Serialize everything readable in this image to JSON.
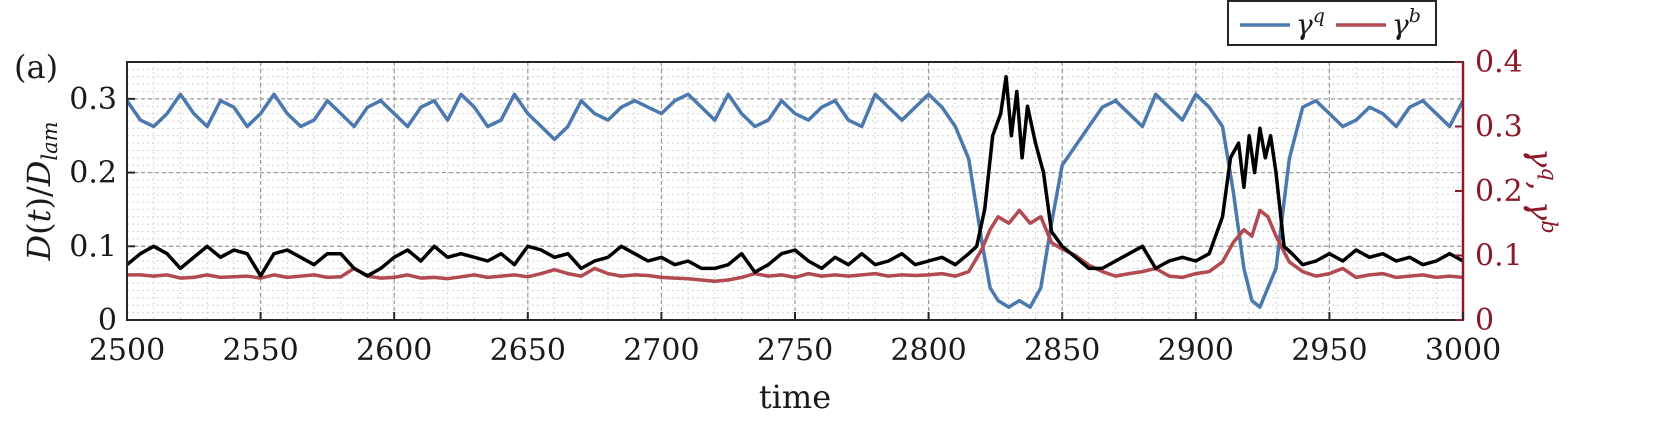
{
  "chart_data": {
    "type": "line",
    "panel_label": "(a)",
    "xlabel": "time",
    "ylabel_left": "D(t)/D_lam",
    "ylabel_right": "γ^q, γ^b",
    "xlim": [
      2500,
      3000
    ],
    "ylim_left": [
      0,
      0.35
    ],
    "ylim_right": [
      0,
      0.4
    ],
    "x_ticks": [
      2500,
      2550,
      2600,
      2650,
      2700,
      2750,
      2800,
      2850,
      2900,
      2950,
      3000
    ],
    "y_ticks_left": [
      0,
      0.1,
      0.2,
      0.3
    ],
    "y_ticks_right": [
      0,
      0.1,
      0.2,
      0.3,
      0.4
    ],
    "grid": true,
    "legend_position": "top-right",
    "colors": {
      "gamma_q": "#4b79ad",
      "gamma_b": "#b24a52",
      "D": "#000000",
      "right_axis": "#8b1a2b"
    },
    "legend": [
      {
        "label": "γ^q",
        "base": "γ",
        "sup": "q",
        "color": "#4b79ad"
      },
      {
        "label": "γ^b",
        "base": "γ",
        "sup": "b",
        "color": "#b24a52"
      }
    ],
    "series": [
      {
        "name": "γ^q",
        "axis": "right",
        "x": [
          2500,
          2505,
          2510,
          2515,
          2520,
          2525,
          2530,
          2535,
          2540,
          2545,
          2550,
          2555,
          2560,
          2565,
          2570,
          2575,
          2580,
          2585,
          2590,
          2595,
          2600,
          2605,
          2610,
          2615,
          2620,
          2625,
          2630,
          2635,
          2640,
          2645,
          2650,
          2655,
          2660,
          2665,
          2670,
          2675,
          2680,
          2685,
          2690,
          2695,
          2700,
          2705,
          2710,
          2715,
          2720,
          2725,
          2730,
          2735,
          2740,
          2745,
          2750,
          2755,
          2760,
          2765,
          2770,
          2775,
          2780,
          2785,
          2790,
          2795,
          2800,
          2805,
          2810,
          2815,
          2820,
          2823,
          2826,
          2830,
          2834,
          2838,
          2842,
          2846,
          2850,
          2855,
          2860,
          2865,
          2870,
          2875,
          2880,
          2885,
          2890,
          2895,
          2900,
          2905,
          2910,
          2914,
          2918,
          2921,
          2924,
          2927,
          2930,
          2935,
          2940,
          2945,
          2950,
          2955,
          2960,
          2965,
          2970,
          2975,
          2980,
          2985,
          2990,
          2995,
          3000
        ],
        "y": [
          0.34,
          0.31,
          0.3,
          0.32,
          0.35,
          0.32,
          0.3,
          0.34,
          0.33,
          0.3,
          0.32,
          0.35,
          0.32,
          0.3,
          0.31,
          0.34,
          0.32,
          0.3,
          0.33,
          0.34,
          0.32,
          0.3,
          0.33,
          0.34,
          0.31,
          0.35,
          0.33,
          0.3,
          0.31,
          0.35,
          0.32,
          0.3,
          0.28,
          0.3,
          0.34,
          0.32,
          0.31,
          0.33,
          0.34,
          0.33,
          0.32,
          0.34,
          0.35,
          0.33,
          0.31,
          0.35,
          0.32,
          0.3,
          0.31,
          0.34,
          0.32,
          0.31,
          0.33,
          0.34,
          0.31,
          0.3,
          0.35,
          0.33,
          0.31,
          0.33,
          0.35,
          0.33,
          0.3,
          0.25,
          0.12,
          0.05,
          0.03,
          0.02,
          0.03,
          0.02,
          0.05,
          0.15,
          0.24,
          0.27,
          0.3,
          0.33,
          0.34,
          0.32,
          0.3,
          0.35,
          0.33,
          0.31,
          0.35,
          0.33,
          0.3,
          0.2,
          0.08,
          0.03,
          0.02,
          0.05,
          0.08,
          0.25,
          0.33,
          0.34,
          0.32,
          0.3,
          0.31,
          0.33,
          0.32,
          0.3,
          0.33,
          0.34,
          0.32,
          0.3,
          0.34
        ]
      },
      {
        "name": "γ^b",
        "axis": "right",
        "x": [
          2500,
          2505,
          2510,
          2515,
          2520,
          2525,
          2530,
          2535,
          2540,
          2545,
          2550,
          2555,
          2560,
          2565,
          2570,
          2575,
          2580,
          2585,
          2590,
          2595,
          2600,
          2605,
          2610,
          2615,
          2620,
          2625,
          2630,
          2635,
          2640,
          2645,
          2650,
          2655,
          2660,
          2665,
          2670,
          2675,
          2680,
          2685,
          2690,
          2695,
          2700,
          2705,
          2710,
          2715,
          2720,
          2725,
          2730,
          2735,
          2740,
          2745,
          2750,
          2755,
          2760,
          2765,
          2770,
          2775,
          2780,
          2785,
          2790,
          2795,
          2800,
          2805,
          2810,
          2815,
          2820,
          2823,
          2826,
          2830,
          2834,
          2838,
          2842,
          2846,
          2850,
          2855,
          2860,
          2865,
          2870,
          2875,
          2880,
          2885,
          2890,
          2895,
          2900,
          2905,
          2910,
          2914,
          2918,
          2921,
          2924,
          2927,
          2930,
          2935,
          2940,
          2945,
          2950,
          2955,
          2960,
          2965,
          2970,
          2975,
          2980,
          2985,
          2990,
          2995,
          3000
        ],
        "y": [
          0.07,
          0.07,
          0.068,
          0.07,
          0.065,
          0.066,
          0.07,
          0.066,
          0.067,
          0.068,
          0.065,
          0.07,
          0.066,
          0.068,
          0.07,
          0.066,
          0.067,
          0.08,
          0.068,
          0.065,
          0.066,
          0.07,
          0.065,
          0.066,
          0.064,
          0.067,
          0.07,
          0.066,
          0.068,
          0.07,
          0.067,
          0.072,
          0.078,
          0.072,
          0.068,
          0.08,
          0.072,
          0.068,
          0.07,
          0.069,
          0.066,
          0.065,
          0.064,
          0.062,
          0.06,
          0.062,
          0.066,
          0.072,
          0.068,
          0.07,
          0.066,
          0.072,
          0.068,
          0.07,
          0.068,
          0.07,
          0.072,
          0.068,
          0.07,
          0.069,
          0.07,
          0.072,
          0.068,
          0.075,
          0.11,
          0.14,
          0.16,
          0.15,
          0.17,
          0.15,
          0.16,
          0.12,
          0.11,
          0.1,
          0.085,
          0.075,
          0.068,
          0.072,
          0.075,
          0.08,
          0.068,
          0.066,
          0.072,
          0.075,
          0.09,
          0.12,
          0.14,
          0.13,
          0.17,
          0.16,
          0.13,
          0.09,
          0.075,
          0.068,
          0.072,
          0.08,
          0.066,
          0.07,
          0.072,
          0.066,
          0.068,
          0.07,
          0.066,
          0.068,
          0.066
        ]
      },
      {
        "name": "D(t)/D_lam",
        "axis": "left",
        "x": [
          2500,
          2505,
          2510,
          2515,
          2520,
          2525,
          2530,
          2535,
          2540,
          2545,
          2550,
          2555,
          2560,
          2565,
          2570,
          2575,
          2580,
          2585,
          2590,
          2595,
          2600,
          2605,
          2610,
          2615,
          2620,
          2625,
          2630,
          2635,
          2640,
          2645,
          2650,
          2655,
          2660,
          2665,
          2670,
          2675,
          2680,
          2685,
          2690,
          2695,
          2700,
          2705,
          2710,
          2715,
          2720,
          2725,
          2730,
          2735,
          2740,
          2745,
          2750,
          2755,
          2760,
          2765,
          2770,
          2775,
          2780,
          2785,
          2790,
          2795,
          2800,
          2805,
          2810,
          2815,
          2818,
          2821,
          2824,
          2827,
          2829,
          2831,
          2833,
          2835,
          2837,
          2840,
          2843,
          2846,
          2850,
          2855,
          2860,
          2865,
          2870,
          2875,
          2880,
          2885,
          2890,
          2895,
          2900,
          2905,
          2910,
          2913,
          2916,
          2918,
          2920,
          2922,
          2924,
          2926,
          2928,
          2930,
          2933,
          2936,
          2940,
          2945,
          2950,
          2955,
          2960,
          2965,
          2970,
          2975,
          2980,
          2985,
          2990,
          2995,
          3000
        ],
        "y": [
          0.075,
          0.09,
          0.1,
          0.09,
          0.07,
          0.085,
          0.1,
          0.085,
          0.095,
          0.09,
          0.06,
          0.09,
          0.095,
          0.085,
          0.075,
          0.09,
          0.09,
          0.07,
          0.06,
          0.07,
          0.085,
          0.095,
          0.08,
          0.1,
          0.085,
          0.09,
          0.085,
          0.08,
          0.09,
          0.075,
          0.1,
          0.095,
          0.085,
          0.09,
          0.07,
          0.08,
          0.085,
          0.1,
          0.09,
          0.08,
          0.085,
          0.075,
          0.08,
          0.07,
          0.07,
          0.075,
          0.09,
          0.065,
          0.075,
          0.09,
          0.095,
          0.08,
          0.07,
          0.085,
          0.075,
          0.09,
          0.075,
          0.08,
          0.09,
          0.075,
          0.08,
          0.085,
          0.075,
          0.09,
          0.1,
          0.15,
          0.25,
          0.28,
          0.33,
          0.25,
          0.31,
          0.22,
          0.29,
          0.24,
          0.2,
          0.12,
          0.1,
          0.085,
          0.07,
          0.07,
          0.08,
          0.09,
          0.1,
          0.07,
          0.08,
          0.085,
          0.08,
          0.09,
          0.14,
          0.22,
          0.24,
          0.18,
          0.25,
          0.2,
          0.26,
          0.22,
          0.25,
          0.2,
          0.1,
          0.09,
          0.075,
          0.08,
          0.09,
          0.08,
          0.095,
          0.085,
          0.09,
          0.08,
          0.085,
          0.075,
          0.08,
          0.09,
          0.08
        ]
      }
    ]
  }
}
